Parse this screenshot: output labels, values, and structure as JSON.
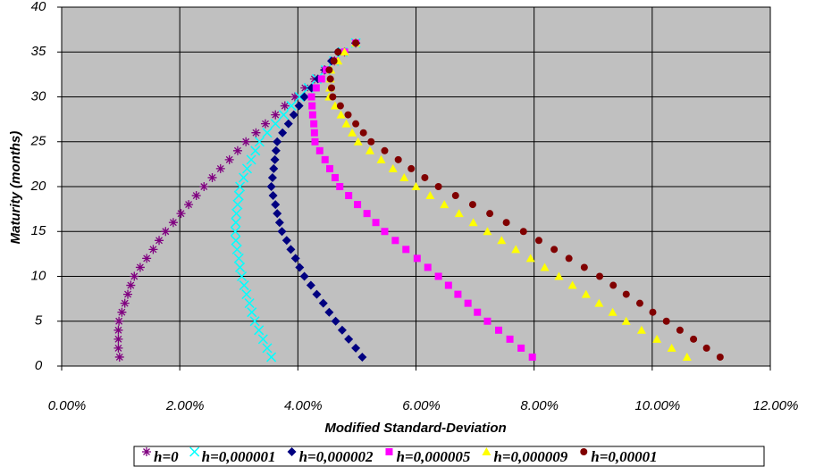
{
  "chart_data": {
    "type": "scatter",
    "x_label": "Modified Standard-Deviation",
    "y_label": "Maturity (months)",
    "xlim": [
      0,
      12
    ],
    "ylim": [
      0,
      40
    ],
    "xticks": [
      {
        "value": 0,
        "label": "0.00%"
      },
      {
        "value": 2,
        "label": "2.00%"
      },
      {
        "value": 4,
        "label": "4.00%"
      },
      {
        "value": 6,
        "label": "6.00%"
      },
      {
        "value": 8,
        "label": "8.00%"
      },
      {
        "value": 10,
        "label": "10.00%"
      },
      {
        "value": 12,
        "label": "12.00%"
      }
    ],
    "yticks": [
      0,
      5,
      10,
      15,
      20,
      25,
      30,
      35,
      40
    ],
    "grid": true,
    "legend": "bottom",
    "y": [
      1,
      2,
      3,
      4,
      5,
      6,
      7,
      8,
      9,
      10,
      11,
      12,
      13,
      14,
      15,
      16,
      17,
      18,
      19,
      20,
      21,
      22,
      23,
      24,
      25,
      26,
      27,
      28,
      29,
      30,
      31,
      32,
      33,
      34,
      35,
      36
    ],
    "series": [
      {
        "name": "h=0",
        "color": "#800080",
        "marker": "asterisk",
        "x": [
          0.98,
          0.96,
          0.96,
          0.96,
          0.97,
          1.02,
          1.07,
          1.12,
          1.17,
          1.23,
          1.33,
          1.44,
          1.55,
          1.65,
          1.76,
          1.89,
          2.02,
          2.15,
          2.28,
          2.41,
          2.55,
          2.69,
          2.84,
          2.98,
          3.12,
          3.29,
          3.45,
          3.62,
          3.78,
          3.95,
          4.12,
          4.28,
          4.45,
          4.62,
          4.79,
          4.98
        ]
      },
      {
        "name": "h=0,000001",
        "color": "#00ffff",
        "marker": "x",
        "x": [
          3.55,
          3.48,
          3.41,
          3.34,
          3.27,
          3.22,
          3.18,
          3.13,
          3.09,
          3.05,
          3.02,
          3.0,
          2.97,
          2.95,
          2.94,
          2.95,
          2.96,
          2.98,
          3.0,
          3.02,
          3.08,
          3.14,
          3.21,
          3.28,
          3.35,
          3.48,
          3.62,
          3.76,
          3.89,
          4.03,
          4.18,
          4.32,
          4.47,
          4.61,
          4.76,
          4.98
        ]
      },
      {
        "name": "h=0,000002",
        "color": "#000080",
        "marker": "diamond",
        "x": [
          5.09,
          4.98,
          4.86,
          4.75,
          4.64,
          4.53,
          4.43,
          4.32,
          4.22,
          4.11,
          4.03,
          3.96,
          3.88,
          3.81,
          3.73,
          3.69,
          3.65,
          3.62,
          3.58,
          3.55,
          3.57,
          3.59,
          3.61,
          3.63,
          3.65,
          3.74,
          3.84,
          3.93,
          4.02,
          4.11,
          4.23,
          4.34,
          4.46,
          4.57,
          4.68,
          4.98
        ]
      },
      {
        "name": "h=0,000005",
        "color": "#ff00ff",
        "marker": "square",
        "x": [
          7.97,
          7.78,
          7.59,
          7.4,
          7.21,
          7.04,
          6.88,
          6.71,
          6.55,
          6.38,
          6.2,
          6.02,
          5.83,
          5.65,
          5.47,
          5.32,
          5.17,
          5.01,
          4.86,
          4.71,
          4.63,
          4.54,
          4.46,
          4.37,
          4.29,
          4.28,
          4.27,
          4.25,
          4.24,
          4.23,
          4.31,
          4.4,
          4.48,
          4.64,
          4.79,
          4.98
        ]
      },
      {
        "name": "h=0,000009",
        "color": "#ffff00",
        "marker": "triangle",
        "x": [
          10.59,
          10.33,
          10.08,
          9.82,
          9.56,
          9.33,
          9.1,
          8.88,
          8.65,
          8.42,
          8.18,
          7.94,
          7.69,
          7.45,
          7.21,
          6.97,
          6.73,
          6.48,
          6.24,
          6.0,
          5.8,
          5.61,
          5.41,
          5.22,
          5.02,
          4.92,
          4.82,
          4.73,
          4.63,
          4.53,
          4.54,
          4.55,
          4.56,
          4.68,
          4.79,
          4.98
        ]
      },
      {
        "name": "h=0,00001",
        "color": "#800000",
        "marker": "circle",
        "x": [
          11.15,
          10.92,
          10.7,
          10.47,
          10.24,
          10.01,
          9.79,
          9.56,
          9.34,
          9.11,
          8.85,
          8.59,
          8.34,
          8.08,
          7.82,
          7.53,
          7.25,
          6.96,
          6.67,
          6.38,
          6.15,
          5.92,
          5.7,
          5.47,
          5.24,
          5.11,
          4.98,
          4.85,
          4.72,
          4.59,
          4.57,
          4.55,
          4.53,
          4.61,
          4.68,
          4.98
        ]
      }
    ]
  }
}
